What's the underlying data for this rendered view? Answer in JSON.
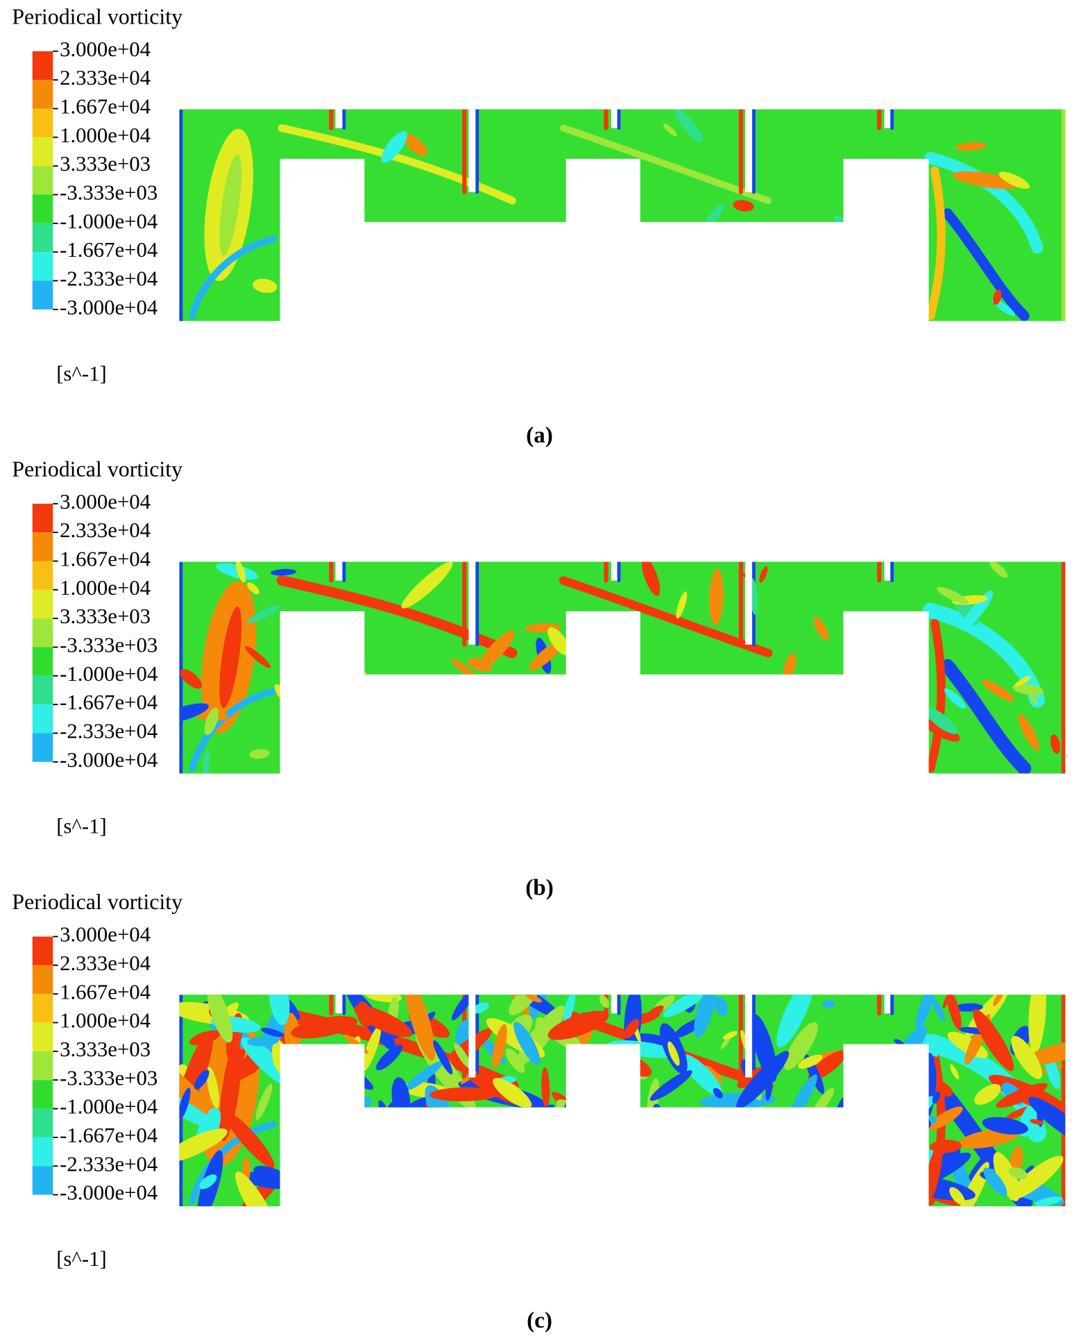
{
  "panels": [
    {
      "title": "Periodical vorticity",
      "scale_labels": [
        "3.000e+04",
        "2.333e+04",
        "1.667e+04",
        "1.000e+04",
        "3.333e+03",
        "-3.333e+03",
        "-1.000e+04",
        "-1.667e+04",
        "-2.333e+04",
        "-3.000e+04"
      ],
      "unit": "[s^-1]",
      "caption": "(a)"
    },
    {
      "title": "Periodical vorticity",
      "scale_labels": [
        "3.000e+04",
        "2.333e+04",
        "1.667e+04",
        "1.000e+04",
        "3.333e+03",
        "-3.333e+03",
        "-1.000e+04",
        "-1.667e+04",
        "-2.333e+04",
        "-3.000e+04"
      ],
      "unit": "[s^-1]",
      "caption": "(b)"
    },
    {
      "title": "Periodical vorticity",
      "scale_labels": [
        "3.000e+04",
        "2.333e+04",
        "1.667e+04",
        "1.000e+04",
        "3.333e+03",
        "-3.333e+03",
        "-1.000e+04",
        "-1.667e+04",
        "-2.333e+04",
        "-3.000e+04"
      ],
      "unit": "[s^-1]",
      "caption": "(c)"
    }
  ]
}
